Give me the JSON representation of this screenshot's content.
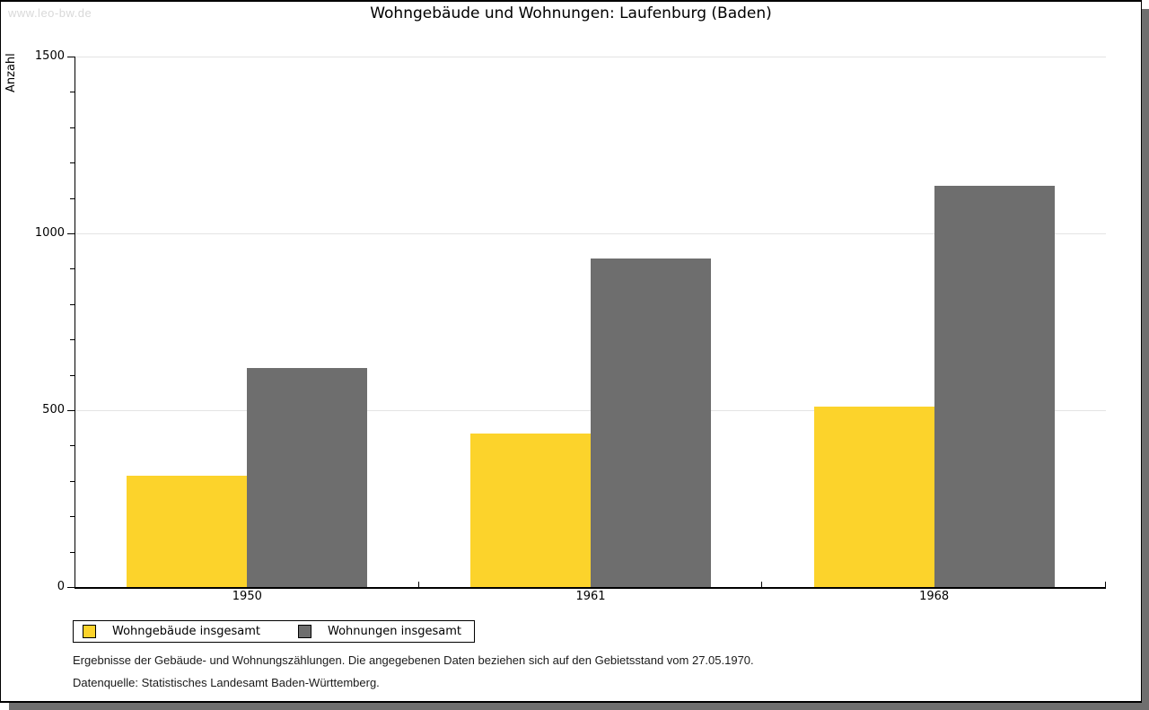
{
  "watermark": "www.leo-bw.de",
  "title": "Wohngebäude und Wohnungen: Laufenburg (Baden)",
  "y_axis": {
    "label": "Anzahl"
  },
  "legend": {
    "entries": [
      {
        "label": "Wohngebäude insgesamt",
        "color": "#FCD32B"
      },
      {
        "label": "Wohnungen insgesamt",
        "color": "#6E6E6E"
      }
    ]
  },
  "footnotes": {
    "line1": "Ergebnisse der Gebäude- und Wohnungszählungen. Die angegebenen Daten beziehen sich auf den Gebietsstand vom 27.05.1970.",
    "line2": "Datenquelle: Statistisches Landesamt Baden-Württemberg."
  },
  "colors": {
    "series_yellow": "#FCD32B",
    "series_gray": "#6E6E6E",
    "gridline": "#E4E4E4",
    "frame_shadow": "#6F6F6F",
    "axis": "#000000"
  },
  "chart_data": {
    "type": "bar",
    "title": "Wohngebäude und Wohnungen: Laufenburg (Baden)",
    "xlabel": "",
    "ylabel": "Anzahl",
    "categories": [
      "1950",
      "1961",
      "1968"
    ],
    "series": [
      {
        "name": "Wohngebäude insgesamt",
        "color": "#FCD32B",
        "values": [
          315,
          435,
          510
        ]
      },
      {
        "name": "Wohnungen insgesamt",
        "color": "#6E6E6E",
        "values": [
          620,
          930,
          1135
        ]
      }
    ],
    "ylim": [
      0,
      1500
    ],
    "y_major_ticks": [
      0,
      500,
      1000,
      1500
    ],
    "y_minor_step": 100,
    "grid": true,
    "gridlines_at": [
      500,
      1000,
      1500
    ],
    "legend_position": "bottom-left"
  }
}
